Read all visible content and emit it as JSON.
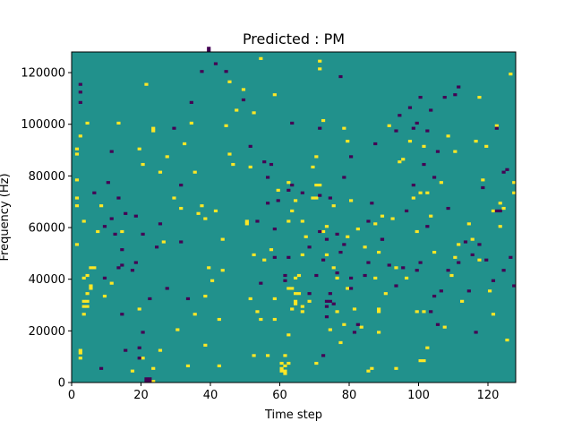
{
  "chart_data": {
    "type": "heatmap",
    "title": "Predicted : PM",
    "xlabel": "Time step",
    "ylabel": "Frequency (Hz)",
    "xlim": [
      0,
      128
    ],
    "ylim": [
      0,
      128000
    ],
    "x_ticks": [
      0,
      20,
      40,
      60,
      80,
      100,
      120
    ],
    "x_tick_labels": [
      "0",
      "20",
      "40",
      "60",
      "80",
      "100",
      "120"
    ],
    "y_ticks": [
      0,
      20000,
      40000,
      60000,
      80000,
      100000,
      120000
    ],
    "y_tick_labels": [
      "0",
      "20000",
      "40000",
      "60000",
      "80000",
      "100000",
      "120000"
    ],
    "grid": false,
    "rows": 128,
    "cols": 128,
    "background_value": 0,
    "values": {
      "high": 1,
      "background": 0,
      "low": -1
    },
    "colormap": "viridis",
    "colors": {
      "high": "#fde725",
      "background": "#21918c",
      "low": "#440154"
    },
    "cells": {
      "high": [
        [
          1,
          53
        ],
        [
          1,
          68
        ],
        [
          1,
          71
        ],
        [
          1,
          78
        ],
        [
          1,
          88
        ],
        [
          1,
          90
        ],
        [
          2,
          9
        ],
        [
          2,
          11
        ],
        [
          2,
          12
        ],
        [
          2,
          95
        ],
        [
          3,
          26
        ],
        [
          3,
          29
        ],
        [
          3,
          31
        ],
        [
          3,
          40
        ],
        [
          3,
          62
        ],
        [
          4,
          29
        ],
        [
          4,
          31
        ],
        [
          4,
          34
        ],
        [
          4,
          41
        ],
        [
          4,
          100
        ],
        [
          5,
          36
        ],
        [
          5,
          37
        ],
        [
          5,
          44
        ],
        [
          6,
          44
        ],
        [
          7,
          58
        ],
        [
          8,
          68
        ],
        [
          9,
          33
        ],
        [
          11,
          38
        ],
        [
          13,
          100
        ],
        [
          14,
          58
        ],
        [
          17,
          4
        ],
        [
          19,
          28
        ],
        [
          19,
          90
        ],
        [
          20,
          84
        ],
        [
          21,
          115
        ],
        [
          23,
          0
        ],
        [
          23,
          5
        ],
        [
          23,
          97
        ],
        [
          23,
          98
        ],
        [
          25,
          81
        ],
        [
          26,
          54
        ],
        [
          27,
          87
        ],
        [
          29,
          71
        ],
        [
          31,
          67
        ],
        [
          32,
          92
        ],
        [
          33,
          6
        ],
        [
          34,
          100
        ],
        [
          35,
          81
        ],
        [
          36,
          65
        ],
        [
          37,
          68
        ],
        [
          38,
          14
        ],
        [
          38,
          63
        ],
        [
          39,
          44
        ],
        [
          40,
          39
        ],
        [
          41,
          66
        ],
        [
          42,
          6
        ],
        [
          42,
          24
        ],
        [
          43,
          43
        ],
        [
          43,
          55
        ],
        [
          44,
          99
        ],
        [
          45,
          88
        ],
        [
          46,
          84
        ],
        [
          47,
          105
        ],
        [
          49,
          113
        ],
        [
          50,
          61
        ],
        [
          50,
          62
        ],
        [
          51,
          32
        ],
        [
          51,
          83
        ],
        [
          52,
          49
        ],
        [
          52,
          104
        ],
        [
          53,
          27
        ],
        [
          54,
          24
        ],
        [
          56,
          10
        ],
        [
          57,
          51
        ],
        [
          58,
          24
        ],
        [
          58,
          32
        ],
        [
          59,
          74
        ],
        [
          60,
          4
        ],
        [
          60,
          5
        ],
        [
          60,
          7
        ],
        [
          61,
          3
        ],
        [
          61,
          4
        ],
        [
          61,
          6
        ],
        [
          62,
          7
        ],
        [
          62,
          18
        ],
        [
          62,
          36
        ],
        [
          62,
          62
        ],
        [
          62,
          77
        ],
        [
          63,
          36
        ],
        [
          63,
          66
        ],
        [
          64,
          30
        ],
        [
          64,
          31
        ],
        [
          64,
          34
        ],
        [
          64,
          40
        ],
        [
          64,
          70
        ],
        [
          65,
          34
        ],
        [
          65,
          41
        ],
        [
          66,
          27
        ],
        [
          66,
          29
        ],
        [
          66,
          49
        ],
        [
          66,
          62
        ],
        [
          67,
          56
        ],
        [
          68,
          31
        ],
        [
          69,
          71
        ],
        [
          70,
          71
        ],
        [
          70,
          87
        ],
        [
          71,
          76
        ],
        [
          71,
          121
        ],
        [
          71,
          124
        ],
        [
          72,
          58
        ],
        [
          72,
          101
        ],
        [
          73,
          49
        ],
        [
          73,
          60
        ],
        [
          74,
          20
        ],
        [
          75,
          44
        ],
        [
          75,
          68
        ],
        [
          76,
          27
        ],
        [
          76,
          40
        ],
        [
          77,
          15
        ],
        [
          78,
          22
        ],
        [
          78,
          98
        ],
        [
          79,
          36
        ],
        [
          79,
          56
        ],
        [
          79,
          93
        ],
        [
          80,
          70
        ],
        [
          81,
          28
        ],
        [
          82,
          59
        ],
        [
          83,
          21
        ],
        [
          84,
          52
        ],
        [
          85,
          4
        ],
        [
          86,
          5
        ],
        [
          87,
          40
        ],
        [
          87,
          61
        ],
        [
          88,
          19
        ],
        [
          88,
          27
        ],
        [
          88,
          28
        ],
        [
          89,
          64
        ],
        [
          90,
          34
        ],
        [
          91,
          99
        ],
        [
          92,
          63
        ],
        [
          93,
          44
        ],
        [
          94,
          85
        ],
        [
          95,
          86
        ],
        [
          96,
          40
        ],
        [
          97,
          93
        ],
        [
          98,
          71
        ],
        [
          99,
          27
        ],
        [
          99,
          58
        ],
        [
          100,
          8
        ],
        [
          100,
          73
        ],
        [
          101,
          8
        ],
        [
          101,
          27
        ],
        [
          101,
          91
        ],
        [
          102,
          73
        ],
        [
          103,
          64
        ],
        [
          104,
          50
        ],
        [
          106,
          77
        ],
        [
          107,
          21
        ],
        [
          108,
          95
        ],
        [
          109,
          41
        ],
        [
          110,
          48
        ],
        [
          110,
          89
        ],
        [
          111,
          53
        ],
        [
          112,
          31
        ],
        [
          114,
          61
        ],
        [
          115,
          55
        ],
        [
          116,
          93
        ],
        [
          117,
          47
        ],
        [
          117,
          110
        ],
        [
          118,
          78
        ],
        [
          119,
          91
        ],
        [
          120,
          35
        ],
        [
          121,
          66
        ],
        [
          122,
          99
        ],
        [
          123,
          60
        ],
        [
          124,
          67
        ],
        [
          125,
          16
        ],
        [
          126,
          119
        ],
        [
          127,
          73
        ],
        [
          127,
          77
        ],
        [
          20,
          9
        ],
        [
          25,
          12
        ],
        [
          30,
          20
        ],
        [
          35,
          26
        ],
        [
          38,
          33
        ],
        [
          55,
          47
        ],
        [
          52,
          10
        ],
        [
          61,
          10
        ],
        [
          63,
          28
        ],
        [
          70,
          7
        ],
        [
          102,
          13
        ],
        [
          121,
          26
        ],
        [
          123,
          69
        ],
        [
          93,
          5
        ],
        [
          88,
          50
        ],
        [
          69,
          83
        ],
        [
          70,
          76
        ],
        [
          45,
          116
        ],
        [
          58,
          111
        ],
        [
          54,
          125
        ]
      ],
      "low": [
        [
          2,
          108
        ],
        [
          2,
          112
        ],
        [
          2,
          115
        ],
        [
          6,
          73
        ],
        [
          8,
          5
        ],
        [
          9,
          40
        ],
        [
          9,
          60
        ],
        [
          10,
          77
        ],
        [
          11,
          63
        ],
        [
          11,
          89
        ],
        [
          12,
          57
        ],
        [
          13,
          44
        ],
        [
          13,
          71
        ],
        [
          14,
          26
        ],
        [
          14,
          45
        ],
        [
          14,
          51
        ],
        [
          15,
          12
        ],
        [
          15,
          65
        ],
        [
          17,
          43
        ],
        [
          18,
          46
        ],
        [
          18,
          64
        ],
        [
          19,
          9
        ],
        [
          19,
          13
        ],
        [
          20,
          19
        ],
        [
          21,
          0
        ],
        [
          21,
          1
        ],
        [
          22,
          0
        ],
        [
          22,
          1
        ],
        [
          22,
          32
        ],
        [
          24,
          52
        ],
        [
          25,
          61
        ],
        [
          27,
          36
        ],
        [
          29,
          98
        ],
        [
          31,
          54
        ],
        [
          31,
          76
        ],
        [
          33,
          32
        ],
        [
          34,
          108
        ],
        [
          37,
          120
        ],
        [
          39,
          128
        ],
        [
          39,
          129
        ],
        [
          41,
          123
        ],
        [
          44,
          120
        ],
        [
          49,
          109
        ],
        [
          51,
          91
        ],
        [
          53,
          62
        ],
        [
          54,
          38
        ],
        [
          55,
          85
        ],
        [
          56,
          69
        ],
        [
          56,
          79
        ],
        [
          57,
          84
        ],
        [
          58,
          48
        ],
        [
          58,
          59
        ],
        [
          61,
          41
        ],
        [
          62,
          48
        ],
        [
          62,
          74
        ],
        [
          63,
          76
        ],
        [
          63,
          100
        ],
        [
          66,
          73
        ],
        [
          68,
          34
        ],
        [
          68,
          52
        ],
        [
          70,
          41
        ],
        [
          71,
          58
        ],
        [
          71,
          72
        ],
        [
          71,
          98
        ],
        [
          72,
          47
        ],
        [
          72,
          10
        ],
        [
          73,
          25
        ],
        [
          73,
          29
        ],
        [
          73,
          31
        ],
        [
          73,
          55
        ],
        [
          74,
          31
        ],
        [
          74,
          34
        ],
        [
          74,
          71
        ],
        [
          75,
          30
        ],
        [
          76,
          42
        ],
        [
          76,
          57
        ],
        [
          77,
          50
        ],
        [
          77,
          118
        ],
        [
          78,
          53
        ],
        [
          78,
          79
        ],
        [
          80,
          36
        ],
        [
          80,
          40
        ],
        [
          80,
          87
        ],
        [
          81,
          19
        ],
        [
          82,
          22
        ],
        [
          84,
          41
        ],
        [
          85,
          46
        ],
        [
          85,
          62
        ],
        [
          86,
          69
        ],
        [
          87,
          92
        ],
        [
          89,
          55
        ],
        [
          91,
          45
        ],
        [
          93,
          37
        ],
        [
          93,
          97
        ],
        [
          94,
          103
        ],
        [
          95,
          44
        ],
        [
          97,
          106
        ],
        [
          98,
          76
        ],
        [
          98,
          98
        ],
        [
          99,
          43
        ],
        [
          99,
          100
        ],
        [
          100,
          46
        ],
        [
          100,
          110
        ],
        [
          101,
          84
        ],
        [
          102,
          60
        ],
        [
          103,
          27
        ],
        [
          103,
          105
        ],
        [
          104,
          33
        ],
        [
          104,
          79
        ],
        [
          105,
          89
        ],
        [
          106,
          35
        ],
        [
          107,
          110
        ],
        [
          108,
          43
        ],
        [
          108,
          67
        ],
        [
          110,
          111
        ],
        [
          111,
          46
        ],
        [
          113,
          54
        ],
        [
          114,
          35
        ],
        [
          115,
          49
        ],
        [
          116,
          19
        ],
        [
          117,
          53
        ],
        [
          118,
          75
        ],
        [
          119,
          47
        ],
        [
          121,
          39
        ],
        [
          122,
          66
        ],
        [
          122,
          98
        ],
        [
          123,
          66
        ],
        [
          124,
          43
        ],
        [
          124,
          81
        ],
        [
          125,
          82
        ],
        [
          126,
          48
        ],
        [
          127,
          37
        ],
        [
          102,
          97
        ],
        [
          96,
          66
        ],
        [
          105,
          22
        ],
        [
          20,
          57
        ],
        [
          59,
          70
        ],
        [
          61,
          39
        ],
        [
          89,
          55
        ],
        [
          111,
          114
        ]
      ]
    }
  }
}
